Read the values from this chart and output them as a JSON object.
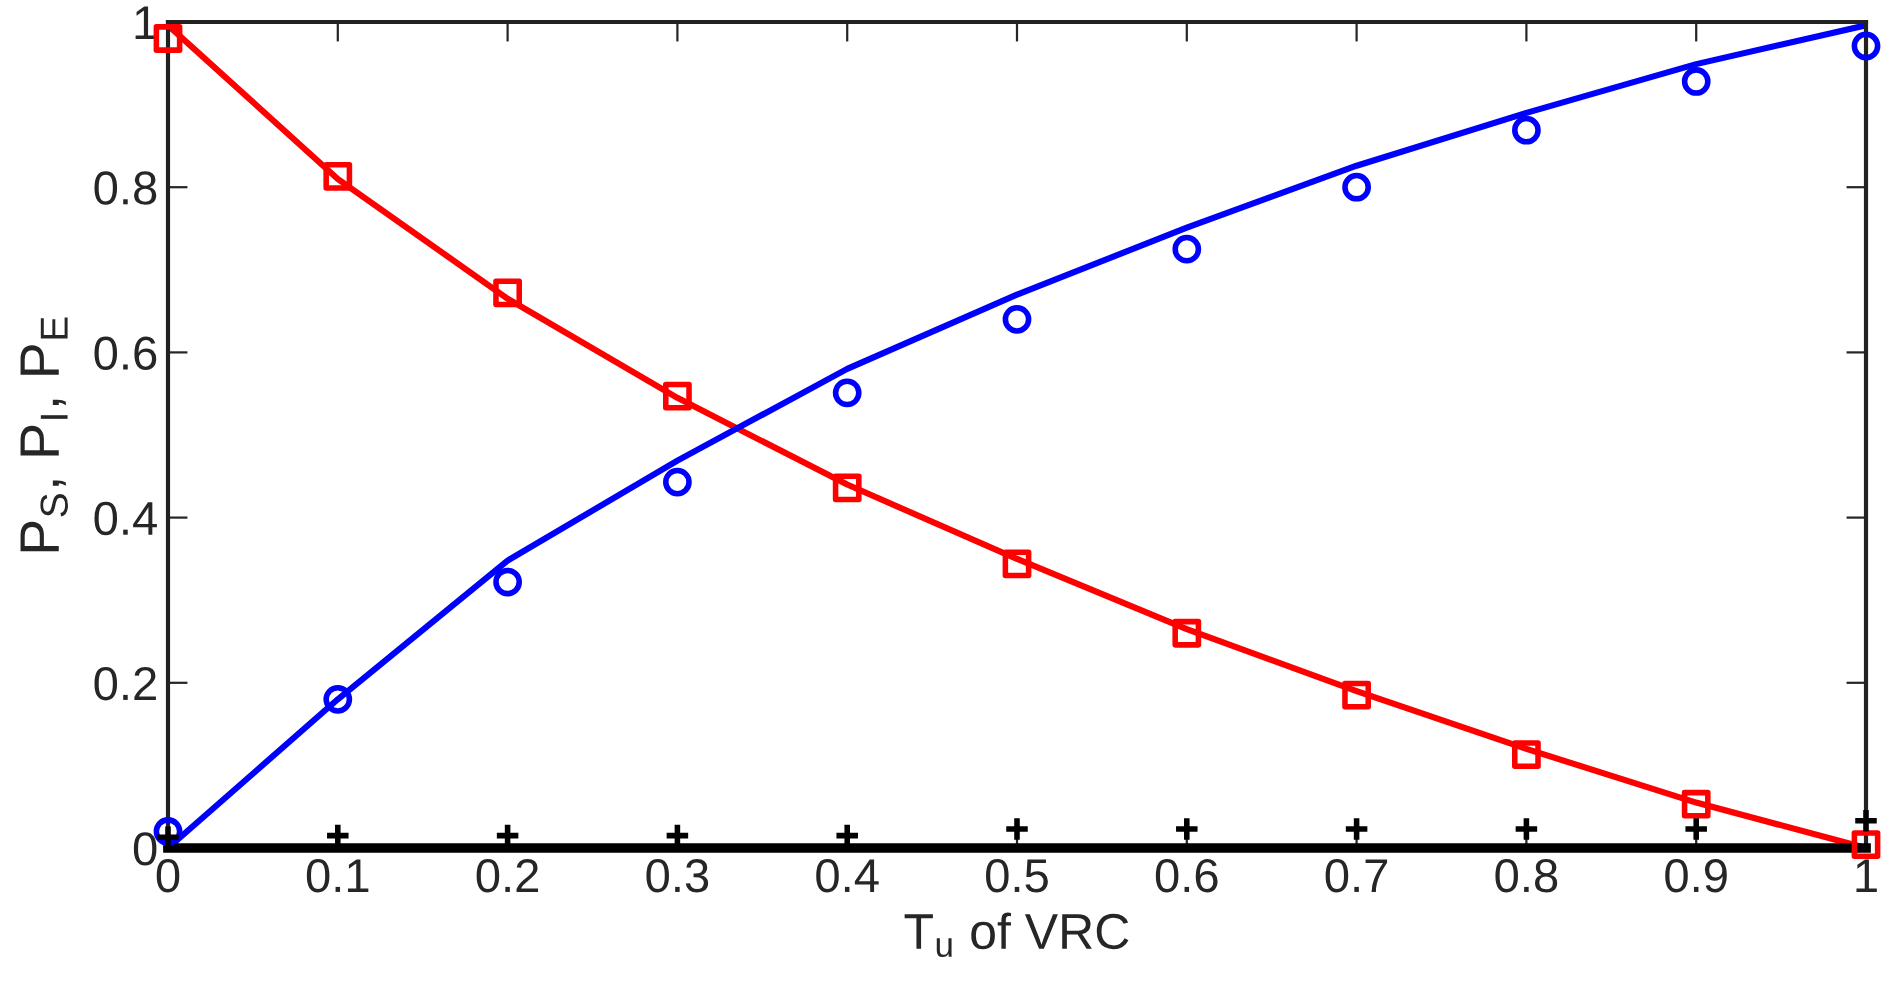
{
  "chart_data": {
    "type": "line",
    "xlabel": "T$_{u}$ of VRC",
    "ylabel": "P$_{S}$, P$_{I}$, P$_{E}$",
    "x": [
      0,
      0.1,
      0.2,
      0.3,
      0.4,
      0.5,
      0.6,
      0.7,
      0.8,
      0.9,
      1
    ],
    "series": [
      {
        "color": "#ff0000",
        "marker": "none",
        "line_style": "solid",
        "values": [
          0.996,
          0.81,
          0.665,
          0.545,
          0.44,
          0.35,
          0.265,
          0.19,
          0.12,
          0.055,
          0.0
        ]
      },
      {
        "color": "#0000ff",
        "marker": "none",
        "line_style": "solid",
        "values": [
          0.0,
          0.18,
          0.348,
          0.469,
          0.58,
          0.67,
          0.751,
          0.826,
          0.89,
          0.949,
          0.996
        ]
      },
      {
        "type": "scatter",
        "color": "#ff0000",
        "marker": "square",
        "values": [
          0.98,
          0.813,
          0.672,
          0.547,
          0.436,
          0.344,
          0.26,
          0.185,
          0.113,
          0.053,
          0.004
        ]
      },
      {
        "type": "scatter",
        "color": "#0000ff",
        "marker": "circle",
        "values": [
          0.02,
          0.18,
          0.322,
          0.443,
          0.551,
          0.64,
          0.725,
          0.8,
          0.869,
          0.928,
          0.971
        ]
      },
      {
        "type": "scatter",
        "color": "#000000",
        "marker": "cross",
        "values": [
          0.013,
          0.015,
          0.015,
          0.015,
          0.015,
          0.023,
          0.023,
          0.023,
          0.023,
          0.023,
          0.033
        ]
      }
    ],
    "xlim": [
      0,
      1
    ],
    "xticks": [
      0,
      0.1,
      0.2,
      0.3,
      0.4,
      0.5,
      0.6,
      0.7,
      0.8,
      0.9,
      1
    ],
    "ylim": [
      0,
      1
    ],
    "yticks": [
      0,
      0.2,
      0.4,
      0.6,
      0.8,
      1
    ],
    "grid": false,
    "legend": false
  }
}
